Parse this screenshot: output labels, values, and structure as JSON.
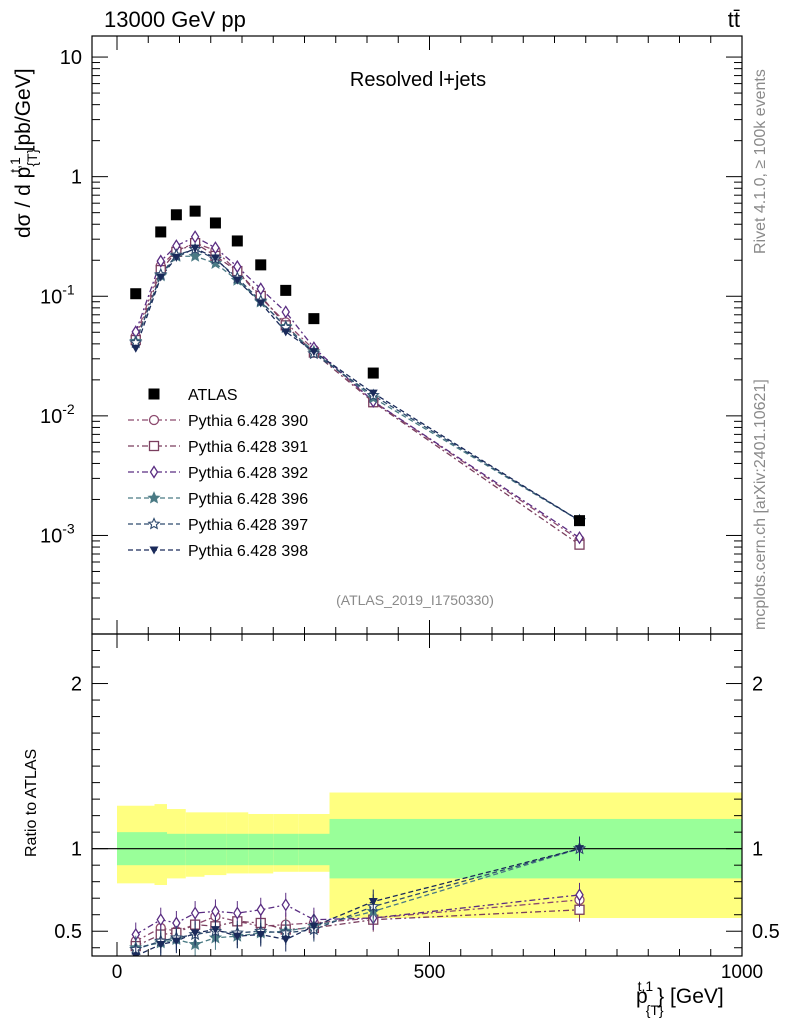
{
  "header": {
    "left_title": "13000 GeV pp",
    "right_title": "tt̄"
  },
  "chart_data": {
    "type": "scatter",
    "title": "Resolved l+jets",
    "analysis_tag": "(ATLAS_2019_I1750330)",
    "side_label_top": "Rivet 4.1.0, ≥ 100k events",
    "side_label_bottom": "mcplots.cern.ch [arXiv:2401.10621]",
    "xlabel": "p_{T}^{t,1} [GeV]",
    "ylabel": "dσ / d p_{T}^{t,1} [pb/GeV]",
    "ratio_ylabel": "Ratio to ATLAS",
    "xlim": [
      -40,
      1000
    ],
    "ylim": [
      0.00015,
      15
    ],
    "ratio_ylim": [
      0.35,
      2.3
    ],
    "log_y": true,
    "x_ticks": [
      "0",
      "500",
      "1000"
    ],
    "y_ticks": [
      "10^{-3}",
      "10^{-2}",
      "10^{-1}",
      "1",
      "10"
    ],
    "ratio_ticks": [
      "0.5",
      "1",
      "2"
    ],
    "bin_edges": [
      0,
      60,
      80,
      110,
      140,
      175,
      210,
      250,
      290,
      340,
      480,
      1000
    ],
    "bin_centers": [
      30,
      70,
      95,
      125,
      157.5,
      192.5,
      230,
      270,
      315,
      410,
      740
    ],
    "data": {
      "name": "ATLAS",
      "values": [
        0.105,
        0.345,
        0.48,
        0.515,
        0.41,
        0.29,
        0.183,
        0.112,
        0.065,
        0.0228,
        0.00133
      ]
    },
    "uncertainty_bands": {
      "stat_lower": [
        0.9,
        0.9,
        0.9,
        0.9,
        0.9,
        0.9,
        0.9,
        0.9,
        0.9,
        0.82,
        0.82
      ],
      "stat_upper": [
        1.1,
        1.1,
        1.09,
        1.09,
        1.09,
        1.09,
        1.09,
        1.09,
        1.09,
        1.18,
        1.18
      ],
      "total_lower": [
        0.79,
        0.78,
        0.82,
        0.83,
        0.84,
        0.85,
        0.85,
        0.86,
        0.86,
        0.58,
        0.58
      ],
      "total_upper": [
        1.26,
        1.27,
        1.24,
        1.22,
        1.22,
        1.22,
        1.21,
        1.21,
        1.21,
        1.34,
        1.34
      ]
    },
    "series": [
      {
        "name": "Pythia 6.428 390",
        "color": "#8c4a6e",
        "marker": "circle-open",
        "dash": "6,3,2,3",
        "ratio": [
          0.44,
          0.52,
          0.5,
          0.54,
          0.59,
          0.56,
          0.53,
          0.54,
          0.55,
          0.58,
          0.69
        ]
      },
      {
        "name": "Pythia 6.428 391",
        "color": "#7a3e5e",
        "marker": "square-open",
        "dash": "6,3,2,3",
        "ratio": [
          0.41,
          0.48,
          0.49,
          0.54,
          0.53,
          0.56,
          0.55,
          0.51,
          0.52,
          0.57,
          0.63
        ]
      },
      {
        "name": "Pythia 6.428 392",
        "color": "#5a2d82",
        "marker": "diamond-open",
        "dash": "6,3,2,3",
        "ratio": [
          0.48,
          0.57,
          0.55,
          0.61,
          0.62,
          0.61,
          0.63,
          0.66,
          0.57,
          0.58,
          0.72
        ]
      },
      {
        "name": "Pythia 6.428 396",
        "color": "#4a7a84",
        "marker": "star-filled",
        "dash": "5,3",
        "ratio": [
          0.4,
          0.43,
          0.45,
          0.42,
          0.46,
          0.47,
          0.49,
          0.5,
          0.53,
          0.62,
          1.0
        ]
      },
      {
        "name": "Pythia 6.428 397",
        "color": "#2e4a6e",
        "marker": "star-open",
        "dash": "5,3",
        "ratio": [
          0.39,
          0.44,
          0.46,
          0.48,
          0.5,
          0.49,
          0.5,
          0.49,
          0.51,
          0.65,
          1.0
        ]
      },
      {
        "name": "Pythia 6.428 398",
        "color": "#1a2a5a",
        "marker": "triangle-down",
        "dash": "5,3",
        "ratio": [
          0.35,
          0.42,
          0.44,
          0.49,
          0.51,
          0.47,
          0.48,
          0.45,
          0.53,
          0.68,
          1.0
        ]
      }
    ]
  }
}
